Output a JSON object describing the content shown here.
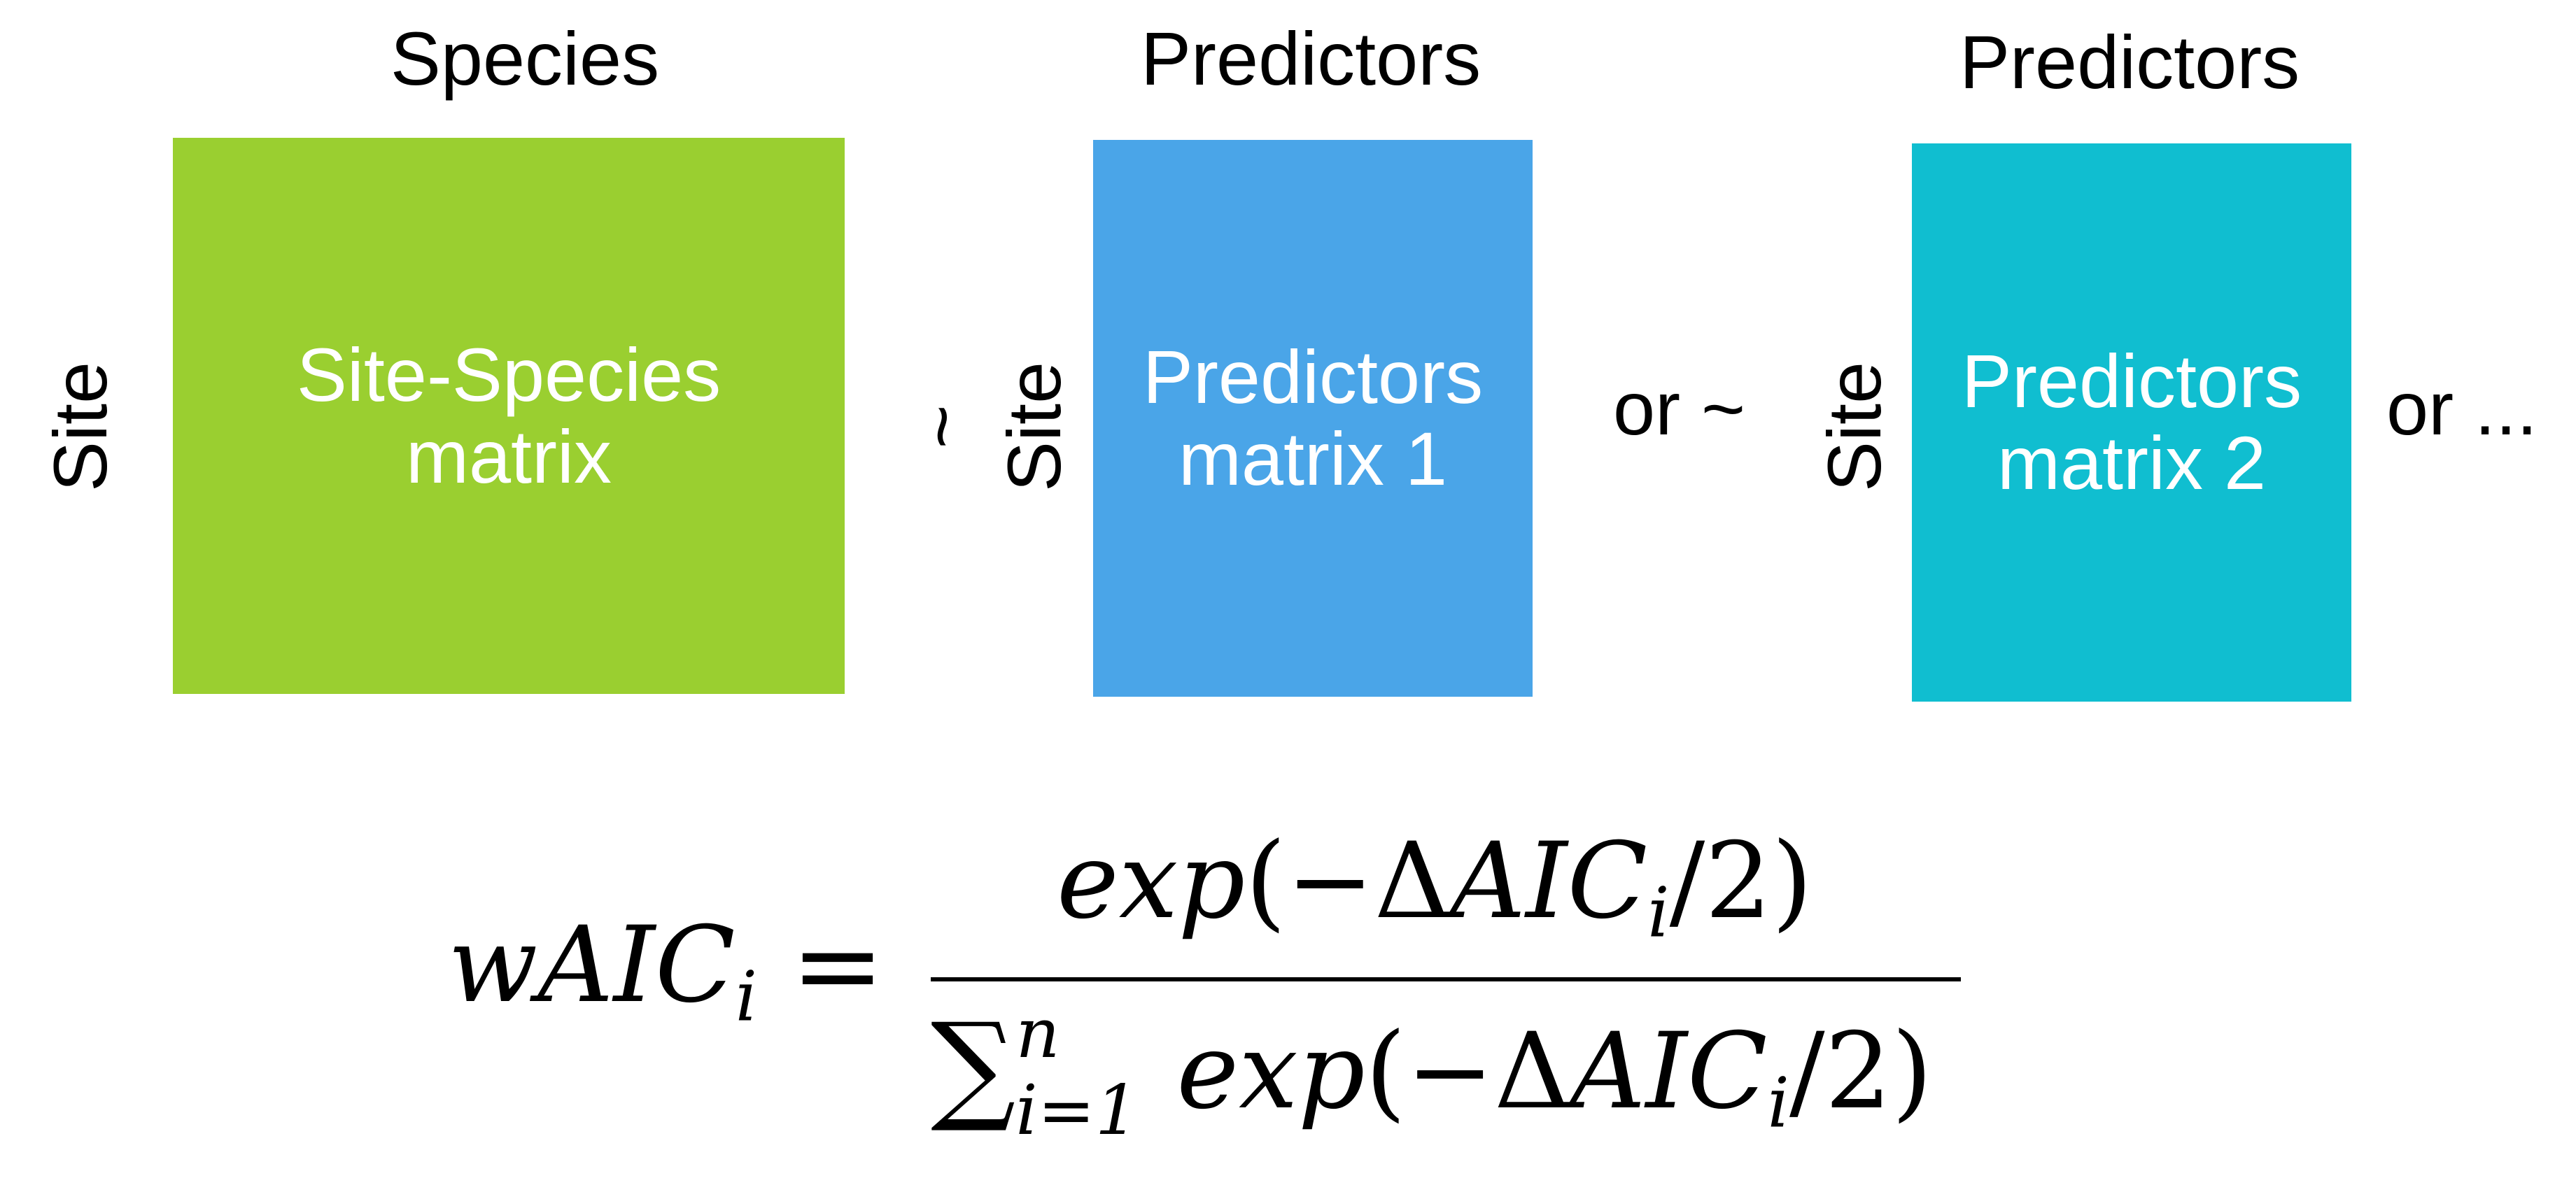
{
  "headers": {
    "species": "Species",
    "predictors_1": "Predictors",
    "predictors_2": "Predictors"
  },
  "row_labels": {
    "site_1": "Site",
    "site_2": "Site",
    "site_3": "Site"
  },
  "matrices": [
    {
      "line1": "Site-Species",
      "line2": "matrix",
      "color": "#9ACF30"
    },
    {
      "line1": "Predictors",
      "line2": "matrix 1",
      "color": "#4AA5E8"
    },
    {
      "line1": "Predictors",
      "line2": "matrix 2",
      "color": "#10BED0"
    }
  ],
  "operators": {
    "tilde": "~",
    "or_tilde": "or ~",
    "or_ellipsis": "or ..."
  },
  "formula": {
    "lhs_w": "w",
    "lhs_aic": "AIC",
    "lhs_sub": "i",
    "equals": "=",
    "num_exp": "exp",
    "num_open": "(",
    "num_minus": "−",
    "num_delta": "Δ",
    "num_aic": "AIC",
    "num_sub": "i",
    "num_div": "/2)",
    "den_sum": "∑",
    "den_sup": "n",
    "den_sub": "i=1",
    "den_exp": "exp",
    "den_open": "(",
    "den_minus": "−",
    "den_delta": "Δ",
    "den_aic": "AIC",
    "den_sub2": "i",
    "den_div": "/2)"
  }
}
